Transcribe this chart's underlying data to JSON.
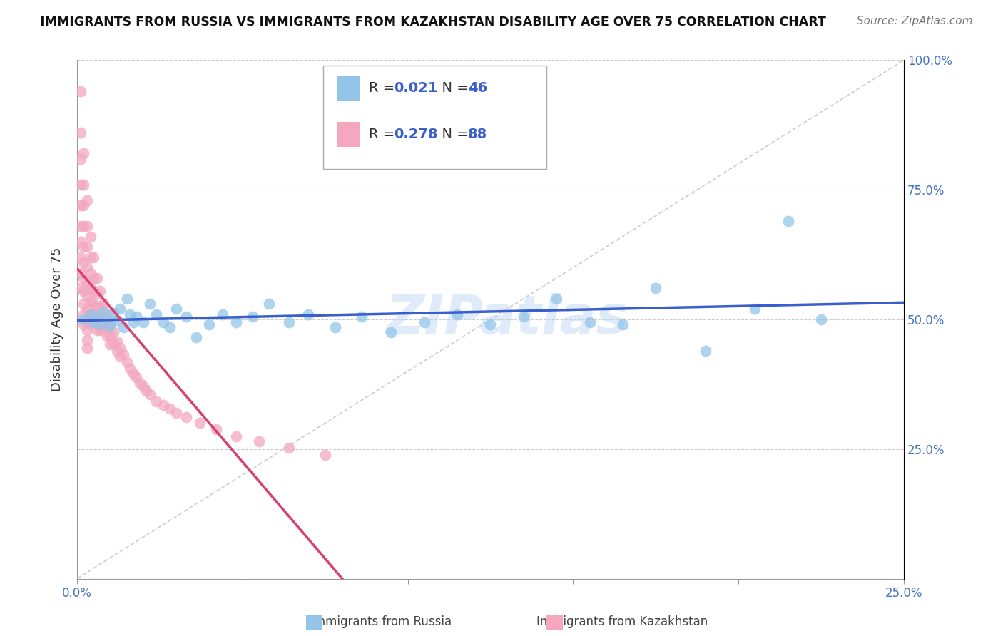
{
  "title": "IMMIGRANTS FROM RUSSIA VS IMMIGRANTS FROM KAZAKHSTAN DISABILITY AGE OVER 75 CORRELATION CHART",
  "source": "Source: ZipAtlas.com",
  "ylabel": "Disability Age Over 75",
  "xmin": 0.0,
  "xmax": 0.25,
  "ymin": 0.0,
  "ymax": 1.0,
  "x_tick_positions": [
    0.0,
    0.05,
    0.1,
    0.15,
    0.2,
    0.25
  ],
  "x_tick_labels": [
    "0.0%",
    "",
    "",
    "",
    "",
    "25.0%"
  ],
  "y_tick_positions": [
    0.0,
    0.25,
    0.5,
    0.75,
    1.0
  ],
  "y_tick_labels": [
    "",
    "25.0%",
    "50.0%",
    "75.0%",
    "100.0%"
  ],
  "russia_R": 0.021,
  "russia_N": 46,
  "kazakhstan_R": 0.278,
  "kazakhstan_N": 88,
  "russia_color": "#92C5E8",
  "kazakhstan_color": "#F4A7BE",
  "russia_line_color": "#3A5FCD",
  "kazakhstan_line_color": "#D94070",
  "diagonal_color": "#C8C8C8",
  "background_color": "#FFFFFF",
  "watermark": "ZIPatlas",
  "russia_x": [
    0.002,
    0.004,
    0.005,
    0.006,
    0.007,
    0.008,
    0.009,
    0.01,
    0.011,
    0.012,
    0.013,
    0.014,
    0.015,
    0.016,
    0.017,
    0.018,
    0.02,
    0.022,
    0.024,
    0.026,
    0.028,
    0.03,
    0.033,
    0.036,
    0.04,
    0.044,
    0.048,
    0.053,
    0.058,
    0.064,
    0.07,
    0.078,
    0.086,
    0.095,
    0.105,
    0.115,
    0.125,
    0.135,
    0.145,
    0.155,
    0.165,
    0.175,
    0.19,
    0.205,
    0.215,
    0.225
  ],
  "russia_y": [
    0.5,
    0.51,
    0.495,
    0.505,
    0.49,
    0.515,
    0.5,
    0.488,
    0.512,
    0.498,
    0.52,
    0.485,
    0.54,
    0.51,
    0.495,
    0.505,
    0.495,
    0.53,
    0.51,
    0.495,
    0.485,
    0.52,
    0.505,
    0.465,
    0.49,
    0.51,
    0.495,
    0.505,
    0.53,
    0.495,
    0.51,
    0.485,
    0.505,
    0.475,
    0.495,
    0.51,
    0.49,
    0.505,
    0.54,
    0.495,
    0.49,
    0.56,
    0.44,
    0.52,
    0.69,
    0.5
  ],
  "kazakhstan_x": [
    0.001,
    0.001,
    0.001,
    0.001,
    0.001,
    0.001,
    0.001,
    0.001,
    0.001,
    0.001,
    0.002,
    0.002,
    0.002,
    0.002,
    0.002,
    0.002,
    0.002,
    0.002,
    0.002,
    0.002,
    0.002,
    0.003,
    0.003,
    0.003,
    0.003,
    0.003,
    0.003,
    0.003,
    0.003,
    0.003,
    0.003,
    0.003,
    0.004,
    0.004,
    0.004,
    0.004,
    0.004,
    0.004,
    0.004,
    0.005,
    0.005,
    0.005,
    0.005,
    0.005,
    0.006,
    0.006,
    0.006,
    0.006,
    0.006,
    0.007,
    0.007,
    0.007,
    0.007,
    0.008,
    0.008,
    0.008,
    0.009,
    0.009,
    0.009,
    0.01,
    0.01,
    0.01,
    0.011,
    0.011,
    0.012,
    0.012,
    0.013,
    0.013,
    0.014,
    0.015,
    0.016,
    0.017,
    0.018,
    0.019,
    0.02,
    0.021,
    0.022,
    0.024,
    0.026,
    0.028,
    0.03,
    0.033,
    0.037,
    0.042,
    0.048,
    0.055,
    0.064,
    0.075
  ],
  "kazakhstan_y": [
    0.94,
    0.86,
    0.81,
    0.76,
    0.72,
    0.68,
    0.65,
    0.62,
    0.59,
    0.56,
    0.82,
    0.76,
    0.72,
    0.68,
    0.64,
    0.61,
    0.58,
    0.555,
    0.53,
    0.51,
    0.49,
    0.73,
    0.68,
    0.64,
    0.6,
    0.57,
    0.545,
    0.52,
    0.5,
    0.48,
    0.46,
    0.445,
    0.66,
    0.62,
    0.59,
    0.56,
    0.535,
    0.51,
    0.49,
    0.62,
    0.58,
    0.555,
    0.53,
    0.51,
    0.58,
    0.55,
    0.525,
    0.5,
    0.48,
    0.555,
    0.525,
    0.5,
    0.48,
    0.53,
    0.505,
    0.482,
    0.51,
    0.488,
    0.468,
    0.49,
    0.47,
    0.452,
    0.475,
    0.455,
    0.458,
    0.44,
    0.445,
    0.428,
    0.432,
    0.418,
    0.405,
    0.395,
    0.388,
    0.378,
    0.37,
    0.362,
    0.355,
    0.342,
    0.335,
    0.328,
    0.32,
    0.312,
    0.3,
    0.288,
    0.275,
    0.265,
    0.252,
    0.238
  ]
}
